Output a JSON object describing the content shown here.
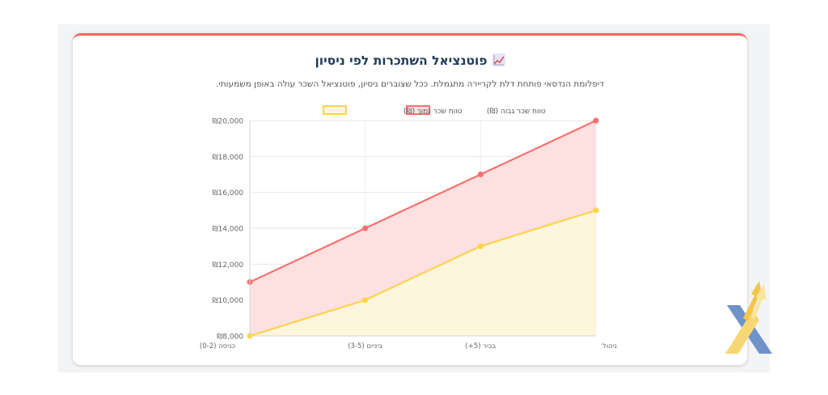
{
  "card": {
    "title": "פוטנציאל השתכרות לפי ניסיון",
    "title_icon": "chart-increasing-icon",
    "subtitle": "דיפלומת הנדסאי פותחת דלת לקריירה מתגמלת. ככל שצוברים ניסיון, פוטנציאל השכר עולה באופן משמעותי."
  },
  "colors": {
    "accent_top_border": "#f0675f",
    "high_series": "#f87171",
    "high_fill": "#fde0e0",
    "low_series": "#fcd34d",
    "low_fill": "#fdf5dc"
  },
  "chart_data": {
    "type": "area",
    "x": [
      "כניסה (0-2)",
      "ביניים (3-5)",
      "בכיר (5+)",
      "ניהול"
    ],
    "series": [
      {
        "name": "טווח שכר גבוה (₪)",
        "values": [
          11000,
          14000,
          17000,
          20000
        ],
        "color": "#f87171",
        "fill": "#fde0e0"
      },
      {
        "name": "טווח שכר נמוך (₪)",
        "values": [
          8000,
          10000,
          13000,
          15000
        ],
        "color": "#fcd34d",
        "fill": "#fdf5dc"
      }
    ],
    "ylim": [
      8000,
      20000
    ],
    "yticks": [
      8000,
      10000,
      12000,
      14000,
      16000,
      18000,
      20000
    ],
    "ytick_labels": [
      "₪8,000",
      "₪10,000",
      "₪12,000",
      "₪14,000",
      "₪16,000",
      "₪18,000",
      "₪20,000"
    ],
    "legend_position": "top",
    "grid": true
  },
  "logo": {
    "name": "brand-logo"
  }
}
